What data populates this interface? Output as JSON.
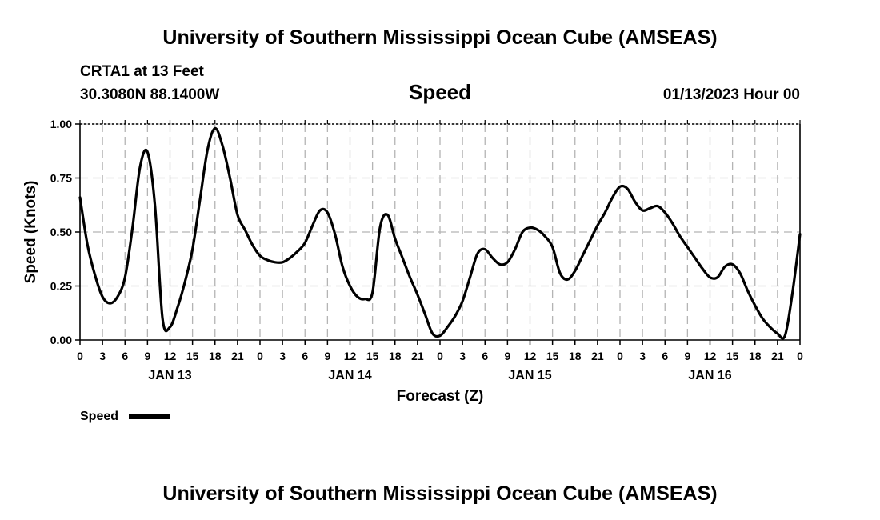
{
  "header": {
    "title": "University of Southern Mississippi Ocean Cube (AMSEAS)",
    "station": "CRTA1 at 13 Feet",
    "coords": "30.3080N  88.1400W",
    "variable": "Speed",
    "issued": "01/13/2023 Hour 00"
  },
  "footer": {
    "title": "University of Southern Mississippi Ocean Cube (AMSEAS)"
  },
  "chart_data": {
    "type": "line",
    "title": "Speed",
    "xlabel": "Forecast (Z)",
    "ylabel": "Speed (Knots)",
    "xlim": [
      0,
      96
    ],
    "ylim": [
      0,
      1
    ],
    "yticks": [
      {
        "v": 0,
        "label": "0.00"
      },
      {
        "v": 0.25,
        "label": "0.25"
      },
      {
        "v": 0.5,
        "label": "0.50"
      },
      {
        "v": 0.75,
        "label": "0.75"
      },
      {
        "v": 1.0,
        "label": "1.00"
      }
    ],
    "xticks": [
      {
        "h": 0,
        "label": "0"
      },
      {
        "h": 3,
        "label": "3"
      },
      {
        "h": 6,
        "label": "6"
      },
      {
        "h": 9,
        "label": "9"
      },
      {
        "h": 12,
        "label": "12"
      },
      {
        "h": 15,
        "label": "15"
      },
      {
        "h": 18,
        "label": "18"
      },
      {
        "h": 21,
        "label": "21"
      },
      {
        "h": 24,
        "label": "0"
      },
      {
        "h": 27,
        "label": "3"
      },
      {
        "h": 30,
        "label": "6"
      },
      {
        "h": 33,
        "label": "9"
      },
      {
        "h": 36,
        "label": "12"
      },
      {
        "h": 39,
        "label": "15"
      },
      {
        "h": 42,
        "label": "18"
      },
      {
        "h": 45,
        "label": "21"
      },
      {
        "h": 48,
        "label": "0"
      },
      {
        "h": 51,
        "label": "3"
      },
      {
        "h": 54,
        "label": "6"
      },
      {
        "h": 57,
        "label": "9"
      },
      {
        "h": 60,
        "label": "12"
      },
      {
        "h": 63,
        "label": "15"
      },
      {
        "h": 66,
        "label": "18"
      },
      {
        "h": 69,
        "label": "21"
      },
      {
        "h": 72,
        "label": "0"
      },
      {
        "h": 75,
        "label": "3"
      },
      {
        "h": 78,
        "label": "6"
      },
      {
        "h": 81,
        "label": "9"
      },
      {
        "h": 84,
        "label": "12"
      },
      {
        "h": 87,
        "label": "15"
      },
      {
        "h": 90,
        "label": "18"
      },
      {
        "h": 93,
        "label": "21"
      },
      {
        "h": 96,
        "label": "0"
      }
    ],
    "date_labels": [
      {
        "h": 12,
        "label": "JAN 13"
      },
      {
        "h": 36,
        "label": "JAN 14"
      },
      {
        "h": 60,
        "label": "JAN 15"
      },
      {
        "h": 84,
        "label": "JAN 16"
      }
    ],
    "grid": true,
    "legend": "bottom-left",
    "series": [
      {
        "name": "Speed",
        "color": "#000000",
        "points": [
          [
            0,
            0.66
          ],
          [
            1,
            0.44
          ],
          [
            2,
            0.3
          ],
          [
            3,
            0.2
          ],
          [
            4,
            0.17
          ],
          [
            5,
            0.2
          ],
          [
            6,
            0.29
          ],
          [
            7,
            0.52
          ],
          [
            8,
            0.8
          ],
          [
            9,
            0.87
          ],
          [
            10,
            0.62
          ],
          [
            11,
            0.1
          ],
          [
            12,
            0.06
          ],
          [
            13,
            0.15
          ],
          [
            14,
            0.27
          ],
          [
            15,
            0.42
          ],
          [
            16,
            0.65
          ],
          [
            17,
            0.88
          ],
          [
            18,
            0.98
          ],
          [
            19,
            0.9
          ],
          [
            20,
            0.75
          ],
          [
            21,
            0.58
          ],
          [
            22,
            0.51
          ],
          [
            23,
            0.44
          ],
          [
            24,
            0.39
          ],
          [
            25,
            0.37
          ],
          [
            26,
            0.36
          ],
          [
            27,
            0.36
          ],
          [
            28,
            0.38
          ],
          [
            29,
            0.41
          ],
          [
            30,
            0.45
          ],
          [
            31,
            0.53
          ],
          [
            32,
            0.6
          ],
          [
            33,
            0.59
          ],
          [
            34,
            0.49
          ],
          [
            35,
            0.34
          ],
          [
            36,
            0.25
          ],
          [
            37,
            0.2
          ],
          [
            38,
            0.19
          ],
          [
            39,
            0.22
          ],
          [
            40,
            0.52
          ],
          [
            41,
            0.58
          ],
          [
            42,
            0.47
          ],
          [
            43,
            0.38
          ],
          [
            44,
            0.29
          ],
          [
            45,
            0.21
          ],
          [
            46,
            0.12
          ],
          [
            47,
            0.03
          ],
          [
            48,
            0.02
          ],
          [
            49,
            0.06
          ],
          [
            50,
            0.11
          ],
          [
            51,
            0.18
          ],
          [
            52,
            0.29
          ],
          [
            53,
            0.4
          ],
          [
            54,
            0.42
          ],
          [
            55,
            0.38
          ],
          [
            56,
            0.35
          ],
          [
            57,
            0.36
          ],
          [
            58,
            0.42
          ],
          [
            59,
            0.5
          ],
          [
            60,
            0.52
          ],
          [
            61,
            0.51
          ],
          [
            62,
            0.48
          ],
          [
            63,
            0.43
          ],
          [
            64,
            0.31
          ],
          [
            65,
            0.28
          ],
          [
            66,
            0.32
          ],
          [
            67,
            0.39
          ],
          [
            68,
            0.46
          ],
          [
            69,
            0.53
          ],
          [
            70,
            0.59
          ],
          [
            71,
            0.66
          ],
          [
            72,
            0.71
          ],
          [
            73,
            0.7
          ],
          [
            74,
            0.64
          ],
          [
            75,
            0.6
          ],
          [
            76,
            0.61
          ],
          [
            77,
            0.62
          ],
          [
            78,
            0.59
          ],
          [
            79,
            0.54
          ],
          [
            80,
            0.48
          ],
          [
            81,
            0.43
          ],
          [
            82,
            0.38
          ],
          [
            83,
            0.33
          ],
          [
            84,
            0.29
          ],
          [
            85,
            0.29
          ],
          [
            86,
            0.34
          ],
          [
            87,
            0.35
          ],
          [
            88,
            0.31
          ],
          [
            89,
            0.23
          ],
          [
            90,
            0.16
          ],
          [
            91,
            0.1
          ],
          [
            92,
            0.06
          ],
          [
            93,
            0.03
          ],
          [
            94,
            0.02
          ],
          [
            95,
            0.22
          ],
          [
            96,
            0.49
          ]
        ]
      }
    ]
  }
}
